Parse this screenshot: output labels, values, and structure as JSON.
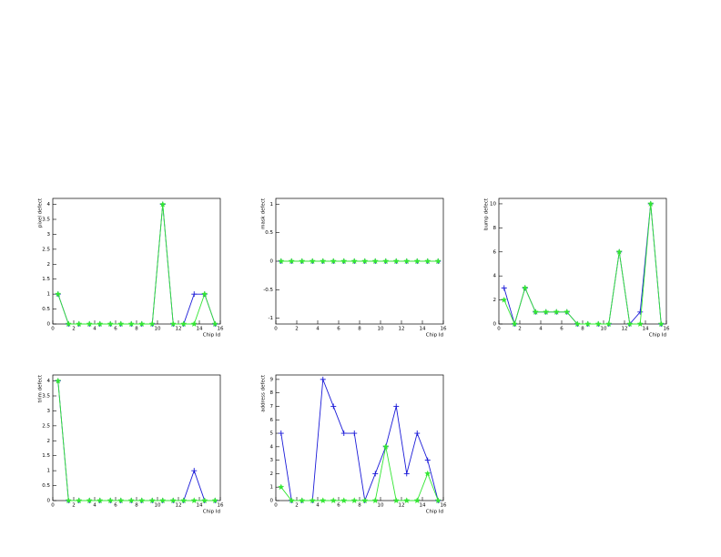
{
  "chart_data": [
    {
      "type": "line",
      "y_label": "pixel defect",
      "x_label": "Chip Id",
      "x": [
        0.5,
        1.5,
        2.5,
        3.5,
        4.5,
        5.5,
        6.5,
        7.5,
        8.5,
        9.5,
        10.5,
        11.5,
        12.5,
        13.5,
        14.5,
        15.5
      ],
      "series": [
        {
          "color": "#1a1ad8",
          "values": [
            1,
            0,
            0,
            0,
            0,
            0,
            0,
            0,
            0,
            0,
            4,
            0,
            0,
            1,
            1,
            0
          ]
        },
        {
          "color": "#33e633",
          "values": [
            1,
            0,
            0,
            0,
            0,
            0,
            0,
            0,
            0,
            0,
            4,
            0,
            0,
            0,
            1,
            0
          ]
        }
      ],
      "xlim": [
        0,
        16
      ],
      "xticks": [
        0,
        2,
        4,
        6,
        8,
        10,
        12,
        14,
        16
      ],
      "ylim": [
        0,
        4.2
      ],
      "yticks": [
        0,
        0.5,
        1,
        1.5,
        2,
        2.5,
        3,
        3.5,
        4
      ]
    },
    {
      "type": "line",
      "y_label": "mask defect",
      "x_label": "Chip Id",
      "x": [
        0.5,
        1.5,
        2.5,
        3.5,
        4.5,
        5.5,
        6.5,
        7.5,
        8.5,
        9.5,
        10.5,
        11.5,
        12.5,
        13.5,
        14.5,
        15.5
      ],
      "series": [
        {
          "color": "#1a1ad8",
          "values": [
            0,
            0,
            0,
            0,
            0,
            0,
            0,
            0,
            0,
            0,
            0,
            0,
            0,
            0,
            0,
            0
          ]
        },
        {
          "color": "#33e633",
          "values": [
            0,
            0,
            0,
            0,
            0,
            0,
            0,
            0,
            0,
            0,
            0,
            0,
            0,
            0,
            0,
            0
          ]
        }
      ],
      "xlim": [
        0,
        16
      ],
      "xticks": [
        0,
        2,
        4,
        6,
        8,
        10,
        12,
        14,
        16
      ],
      "ylim": [
        -1.1,
        1.1
      ],
      "yticks": [
        -1,
        -0.5,
        0,
        0.5,
        1
      ]
    },
    {
      "type": "line",
      "y_label": "bump defect",
      "x_label": "Chip Id",
      "x": [
        0.5,
        1.5,
        2.5,
        3.5,
        4.5,
        5.5,
        6.5,
        7.5,
        8.5,
        9.5,
        10.5,
        11.5,
        12.5,
        13.5,
        14.5,
        15.5
      ],
      "series": [
        {
          "color": "#1a1ad8",
          "values": [
            3,
            0,
            3,
            1,
            1,
            1,
            1,
            0,
            0,
            0,
            0,
            6,
            0,
            1,
            10,
            0
          ]
        },
        {
          "color": "#33e633",
          "values": [
            2,
            0,
            3,
            1,
            1,
            1,
            1,
            0,
            0,
            0,
            0,
            6,
            0,
            0,
            10,
            0
          ]
        }
      ],
      "xlim": [
        0,
        16
      ],
      "xticks": [
        0,
        2,
        4,
        6,
        8,
        10,
        12,
        14,
        16
      ],
      "ylim": [
        0,
        10.45
      ],
      "yticks": [
        0,
        2,
        4,
        6,
        8,
        10
      ]
    },
    {
      "type": "line",
      "y_label": "trim defect",
      "x_label": "Chip Id",
      "x": [
        0.5,
        1.5,
        2.5,
        3.5,
        4.5,
        5.5,
        6.5,
        7.5,
        8.5,
        9.5,
        10.5,
        11.5,
        12.5,
        13.5,
        14.5,
        15.5
      ],
      "series": [
        {
          "color": "#1a1ad8",
          "values": [
            4,
            0,
            0,
            0,
            0,
            0,
            0,
            0,
            0,
            0,
            0,
            0,
            0,
            1,
            0,
            0
          ]
        },
        {
          "color": "#33e633",
          "values": [
            4,
            0,
            0,
            0,
            0,
            0,
            0,
            0,
            0,
            0,
            0,
            0,
            0,
            0,
            0,
            0
          ]
        }
      ],
      "xlim": [
        0,
        16
      ],
      "xticks": [
        0,
        2,
        4,
        6,
        8,
        10,
        12,
        14,
        16
      ],
      "ylim": [
        0,
        4.2
      ],
      "yticks": [
        0,
        0.5,
        1,
        1.5,
        2,
        2.5,
        3,
        3.5,
        4
      ]
    },
    {
      "type": "line",
      "y_label": "address defect",
      "x_label": "Chip Id",
      "x": [
        0.5,
        1.5,
        2.5,
        3.5,
        4.5,
        5.5,
        6.5,
        7.5,
        8.5,
        9.5,
        10.5,
        11.5,
        12.5,
        13.5,
        14.5,
        15.5
      ],
      "series": [
        {
          "color": "#1a1ad8",
          "values": [
            5,
            0,
            0,
            0,
            9,
            7,
            5,
            5,
            0,
            2,
            4,
            7,
            2,
            5,
            3,
            0
          ]
        },
        {
          "color": "#33e633",
          "values": [
            1,
            0,
            0,
            0,
            0,
            0,
            0,
            0,
            0,
            0,
            4,
            0,
            0,
            0,
            2,
            0
          ]
        }
      ],
      "xlim": [
        0,
        16
      ],
      "xticks": [
        0,
        2,
        4,
        6,
        8,
        10,
        12,
        14,
        16
      ],
      "ylim": [
        0,
        9.33
      ],
      "yticks": [
        0,
        1,
        2,
        3,
        4,
        5,
        6,
        7,
        8,
        9
      ]
    }
  ]
}
